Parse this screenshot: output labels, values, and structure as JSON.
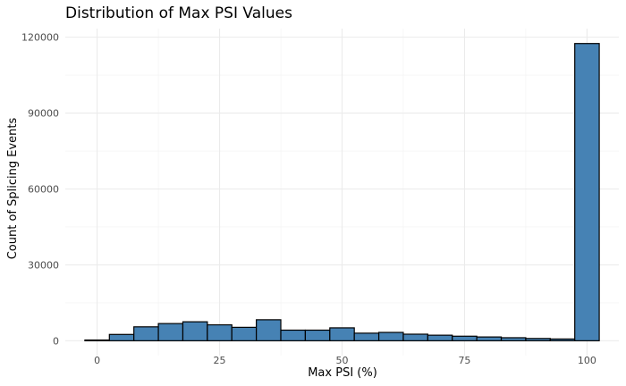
{
  "chart_data": {
    "type": "bar",
    "title": "Distribution of Max PSI Values",
    "xlabel": "Max PSI (%)",
    "ylabel": "Count of Splicing Events",
    "bin_width": 5,
    "x": [
      0,
      5,
      10,
      15,
      20,
      25,
      30,
      35,
      40,
      45,
      50,
      55,
      60,
      65,
      70,
      75,
      80,
      85,
      90,
      95,
      100
    ],
    "values": [
      300,
      2500,
      5500,
      6800,
      7500,
      6300,
      5300,
      8300,
      4200,
      4200,
      5100,
      3000,
      3300,
      2600,
      2200,
      1800,
      1500,
      1200,
      900,
      700,
      117500
    ],
    "xlim": [
      -6.5,
      106.5
    ],
    "ylim": [
      -5876,
      123400
    ],
    "xticks": [
      0,
      25,
      50,
      75,
      100
    ],
    "xtick_labels": [
      "0",
      "25",
      "50",
      "75",
      "100"
    ],
    "yticks": [
      0,
      30000,
      60000,
      90000,
      120000
    ],
    "ytick_labels": [
      "0",
      "30000",
      "60000",
      "90000",
      "120000"
    ],
    "bar_color": "#4682b4",
    "bar_edge_color": "#000000",
    "grid": true
  }
}
